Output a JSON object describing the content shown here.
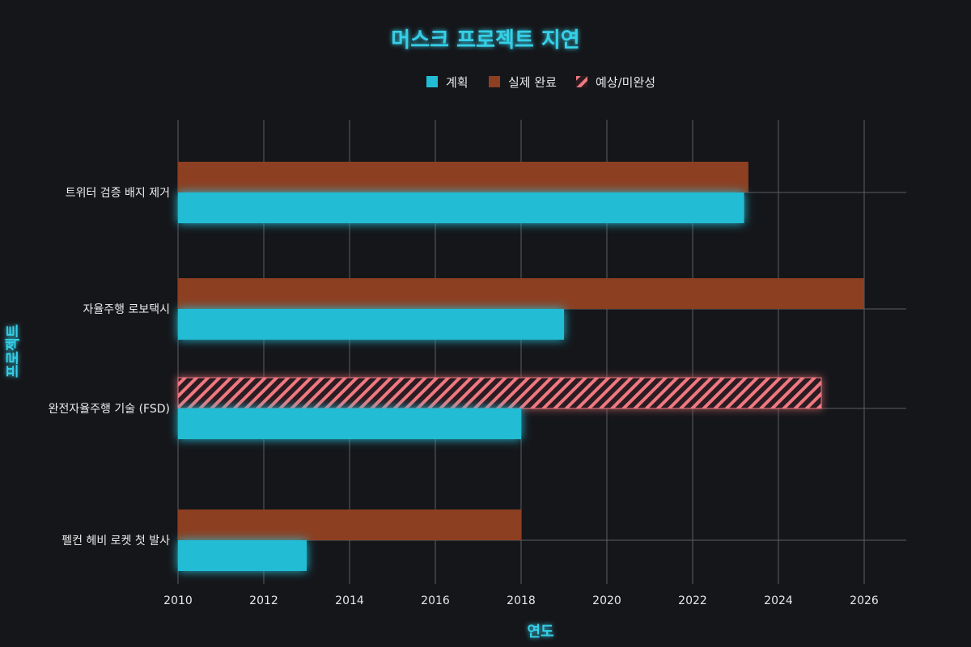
{
  "chart_data": {
    "type": "bar",
    "orientation": "horizontal",
    "title": "머스크 프로젝트 지연",
    "xlabel": "연도",
    "ylabel": "프로젝트",
    "xlim": [
      2010,
      2027
    ],
    "xticks": [
      2010,
      2012,
      2014,
      2016,
      2018,
      2020,
      2022,
      2024,
      2026
    ],
    "grid": true,
    "legend_position": "top",
    "categories": [
      "트위터 검증 배지 제거",
      "자율주행 로보택시",
      "완전자율주행 기술 (FSD)",
      "펠컨 헤비 로켓 첫 발사"
    ],
    "series": [
      {
        "name": "계획",
        "color": "#22bcd4",
        "style": "solid",
        "values": [
          2023.2,
          2019,
          2018,
          2013
        ]
      },
      {
        "name": "실제 완료",
        "color": "#8d3f22",
        "style": "solid",
        "values": [
          2023.3,
          2026,
          null,
          2018
        ]
      },
      {
        "name": "예상/미완성",
        "color": "#f07880",
        "style": "hatched",
        "values": [
          null,
          null,
          2025,
          null
        ]
      }
    ]
  }
}
